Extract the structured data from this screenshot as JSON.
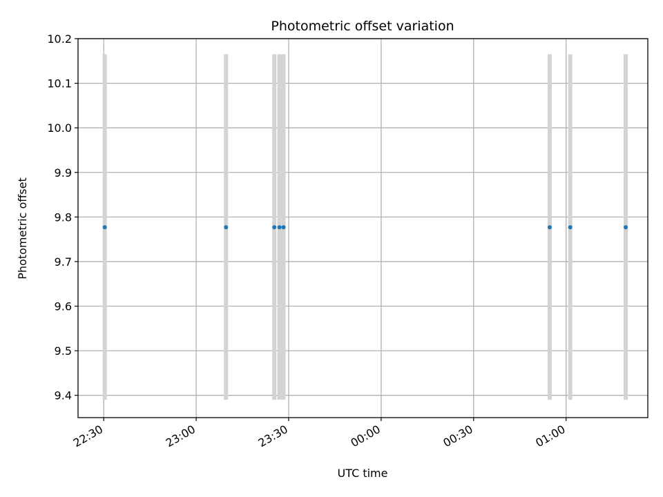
{
  "chart_data": {
    "type": "scatter",
    "title": "Photometric offset variation",
    "xlabel": "UTC time",
    "ylabel": "Photometric offset",
    "xlim": [
      "22:21:40",
      "01:26:30"
    ],
    "ylim": [
      9.35,
      10.2
    ],
    "x_ticks": [
      "22:30",
      "23:00",
      "23:30",
      "00:00",
      "00:30",
      "01:00"
    ],
    "y_ticks": [
      "9.4",
      "9.5",
      "9.6",
      "9.7",
      "9.8",
      "9.9",
      "10.0",
      "10.1",
      "10.2"
    ],
    "grid": true,
    "series": [
      {
        "x": [
          "22:30:20",
          "23:09:40",
          "23:25:20",
          "23:27:00",
          "23:28:20",
          "00:54:40",
          "01:01:20",
          "01:19:20"
        ],
        "y": [
          9.777,
          9.777,
          9.777,
          9.777,
          9.777,
          9.777,
          9.777,
          9.777
        ],
        "error_low": [
          9.39,
          9.39,
          9.39,
          9.39,
          9.39,
          9.39,
          9.39,
          9.39
        ],
        "error_high": [
          10.165,
          10.165,
          10.165,
          10.165,
          10.165,
          10.165,
          10.165,
          10.165
        ]
      }
    ],
    "colors": {
      "points": "#1f77b4",
      "error_bars": "#d3d3d3",
      "grid": "#b0b0b0"
    }
  }
}
